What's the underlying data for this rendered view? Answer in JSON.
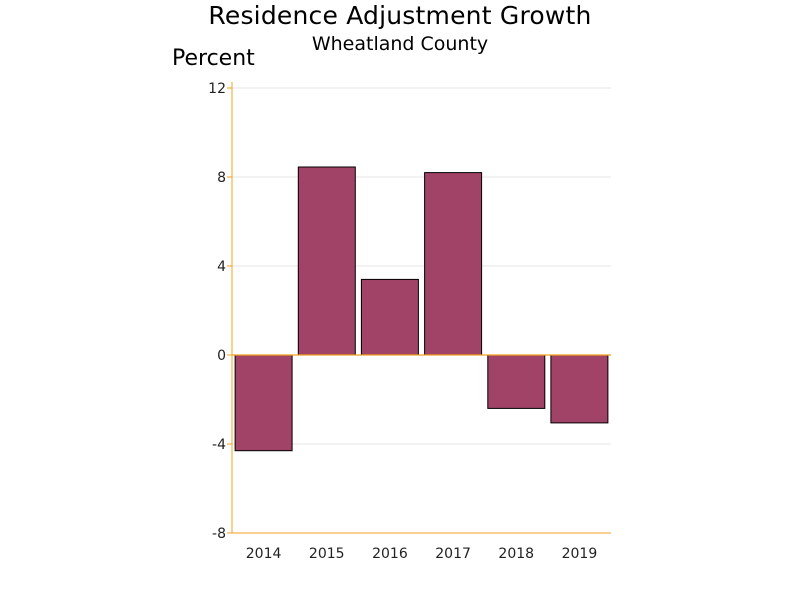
{
  "chart_data": {
    "type": "bar",
    "title": "Residence Adjustment Growth",
    "subtitle": "Wheatland County",
    "xlabel": "",
    "ylabel": "Percent",
    "categories": [
      "2014",
      "2015",
      "2016",
      "2017",
      "2018",
      "2019"
    ],
    "values": [
      -4.3,
      8.45,
      3.4,
      8.2,
      -2.4,
      -3.05
    ],
    "ylim": [
      -8,
      12
    ],
    "yticks": [
      12,
      8,
      4,
      0,
      -4,
      -8
    ],
    "grid": true,
    "colors": {
      "bar": "#a04366",
      "bar_outline": "#000000",
      "axis": "#f0a020",
      "grid": "#e6e6e6"
    }
  }
}
